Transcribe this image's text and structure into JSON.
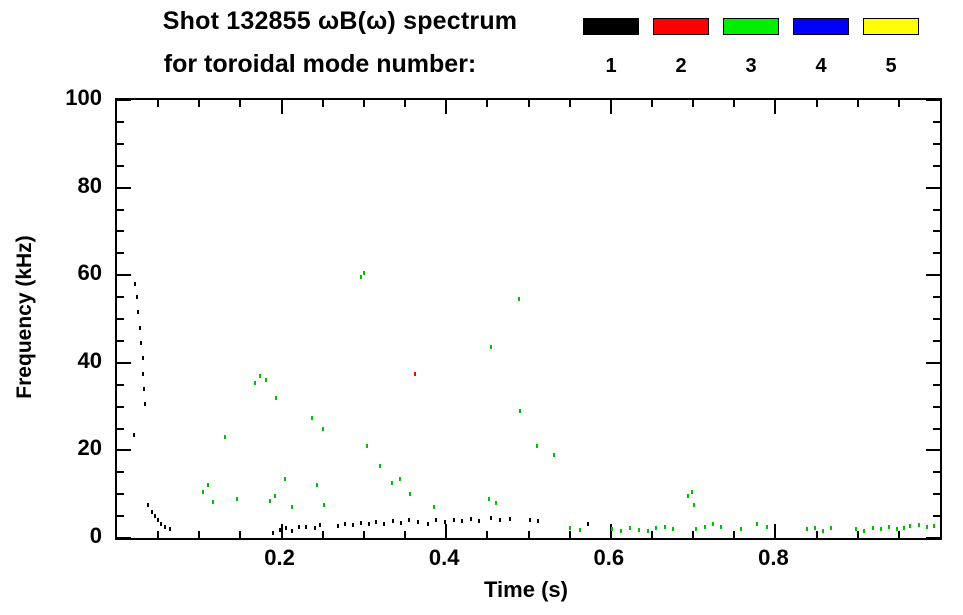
{
  "chart_data": {
    "type": "scatter",
    "title": "Shot 132855 ωB(ω) spectrum",
    "subtitle": "for toroidal mode number:",
    "xlabel": "Time (s)",
    "ylabel": "Frequency (kHz)",
    "xlim": [
      0,
      1.0
    ],
    "ylim": [
      0,
      100
    ],
    "grid": false,
    "xticks": {
      "major_values": [
        0.2,
        0.4,
        0.6,
        0.8
      ],
      "major_labels": [
        "0.2",
        "0.4",
        "0.6",
        "0.8"
      ],
      "minor_step": 0.05
    },
    "yticks": {
      "major_values": [
        0,
        20,
        40,
        60,
        80,
        100
      ],
      "major_labels": [
        "0",
        "20",
        "40",
        "60",
        "80",
        "100"
      ],
      "minor_step": 5
    },
    "legend": {
      "position": "top-right",
      "entries": [
        {
          "label": "1",
          "color": "#000000"
        },
        {
          "label": "2",
          "color": "#ff0000"
        },
        {
          "label": "3",
          "color": "#00ee00"
        },
        {
          "label": "4",
          "color": "#0000ff"
        },
        {
          "label": "5",
          "color": "#ffff00"
        }
      ]
    },
    "series": [
      {
        "name": "n=1",
        "color": "#000000",
        "points": [
          [
            0.022,
            58
          ],
          [
            0.024,
            55
          ],
          [
            0.026,
            51.5
          ],
          [
            0.028,
            48
          ],
          [
            0.029,
            44.5
          ],
          [
            0.031,
            41
          ],
          [
            0.032,
            37.5
          ],
          [
            0.033,
            34
          ],
          [
            0.034,
            30.5
          ],
          [
            0.021,
            23.5
          ],
          [
            0.038,
            7.5
          ],
          [
            0.042,
            6
          ],
          [
            0.046,
            5
          ],
          [
            0.05,
            4
          ],
          [
            0.054,
            3.2
          ],
          [
            0.058,
            2.5
          ],
          [
            0.064,
            2
          ],
          [
            0.19,
            1.2
          ],
          [
            0.198,
            1.8
          ],
          [
            0.205,
            2.2
          ],
          [
            0.213,
            1.6
          ],
          [
            0.221,
            2.4
          ],
          [
            0.23,
            2.6
          ],
          [
            0.24,
            2.2
          ],
          [
            0.247,
            3
          ],
          [
            0.268,
            2.8
          ],
          [
            0.277,
            3.2
          ],
          [
            0.287,
            3
          ],
          [
            0.296,
            3.4
          ],
          [
            0.306,
            3.1
          ],
          [
            0.315,
            3.6
          ],
          [
            0.324,
            3.3
          ],
          [
            0.335,
            3.8
          ],
          [
            0.345,
            3.5
          ],
          [
            0.355,
            4
          ],
          [
            0.366,
            3.6
          ],
          [
            0.378,
            3.2
          ],
          [
            0.388,
            4.1
          ],
          [
            0.398,
            3.7
          ],
          [
            0.409,
            4.2
          ],
          [
            0.419,
            3.8
          ],
          [
            0.43,
            4.3
          ],
          [
            0.44,
            3.9
          ],
          [
            0.455,
            4.6
          ],
          [
            0.465,
            4.2
          ],
          [
            0.478,
            4.4
          ],
          [
            0.502,
            4.1
          ],
          [
            0.512,
            3.8
          ],
          [
            0.572,
            3.2
          ]
        ]
      },
      {
        "name": "n=2",
        "color": "#ff0000",
        "points": [
          [
            0.362,
            37.5
          ]
        ]
      },
      {
        "name": "n=3",
        "color": "#00c000",
        "points": [
          [
            0.104,
            10.5
          ],
          [
            0.11,
            12
          ],
          [
            0.117,
            8.2
          ],
          [
            0.131,
            23
          ],
          [
            0.146,
            9
          ],
          [
            0.168,
            35.5
          ],
          [
            0.174,
            37
          ],
          [
            0.181,
            36
          ],
          [
            0.186,
            8.5
          ],
          [
            0.192,
            9.5
          ],
          [
            0.193,
            32
          ],
          [
            0.204,
            13.5
          ],
          [
            0.213,
            7
          ],
          [
            0.237,
            27.5
          ],
          [
            0.25,
            25
          ],
          [
            0.243,
            12
          ],
          [
            0.252,
            7.5
          ],
          [
            0.296,
            59.5
          ],
          [
            0.3,
            60.5
          ],
          [
            0.304,
            21
          ],
          [
            0.32,
            16.5
          ],
          [
            0.334,
            12.5
          ],
          [
            0.344,
            13.5
          ],
          [
            0.356,
            10
          ],
          [
            0.385,
            7
          ],
          [
            0.455,
            43.5
          ],
          [
            0.452,
            9
          ],
          [
            0.461,
            8
          ],
          [
            0.488,
            54.5
          ],
          [
            0.49,
            29
          ],
          [
            0.51,
            21
          ],
          [
            0.531,
            19
          ],
          [
            0.551,
            2.2
          ],
          [
            0.562,
            1.8
          ],
          [
            0.601,
            2.1
          ],
          [
            0.612,
            1.6
          ],
          [
            0.623,
            2.2
          ],
          [
            0.634,
            1.9
          ],
          [
            0.645,
            1.5
          ],
          [
            0.655,
            2.3
          ],
          [
            0.666,
            2.6
          ],
          [
            0.676,
            2
          ],
          [
            0.694,
            9.5
          ],
          [
            0.699,
            10.5
          ],
          [
            0.701,
            7.5
          ],
          [
            0.704,
            2.1
          ],
          [
            0.714,
            2.6
          ],
          [
            0.724,
            3.1
          ],
          [
            0.734,
            2.4
          ],
          [
            0.758,
            2
          ],
          [
            0.778,
            3.1
          ],
          [
            0.79,
            2.6
          ],
          [
            0.838,
            2.1
          ],
          [
            0.848,
            2.3
          ],
          [
            0.858,
            1.7
          ],
          [
            0.868,
            2.2
          ],
          [
            0.898,
            2.1
          ],
          [
            0.908,
            1.6
          ],
          [
            0.918,
            2.2
          ],
          [
            0.928,
            2
          ],
          [
            0.938,
            2.6
          ],
          [
            0.948,
            2.1
          ],
          [
            0.956,
            2.2
          ],
          [
            0.964,
            2.7
          ],
          [
            0.974,
            3
          ],
          [
            0.984,
            2.5
          ],
          [
            0.993,
            2.8
          ]
        ]
      },
      {
        "name": "n=4",
        "color": "#0000ff",
        "points": []
      },
      {
        "name": "n=5",
        "color": "#ffff00",
        "points": []
      }
    ]
  }
}
